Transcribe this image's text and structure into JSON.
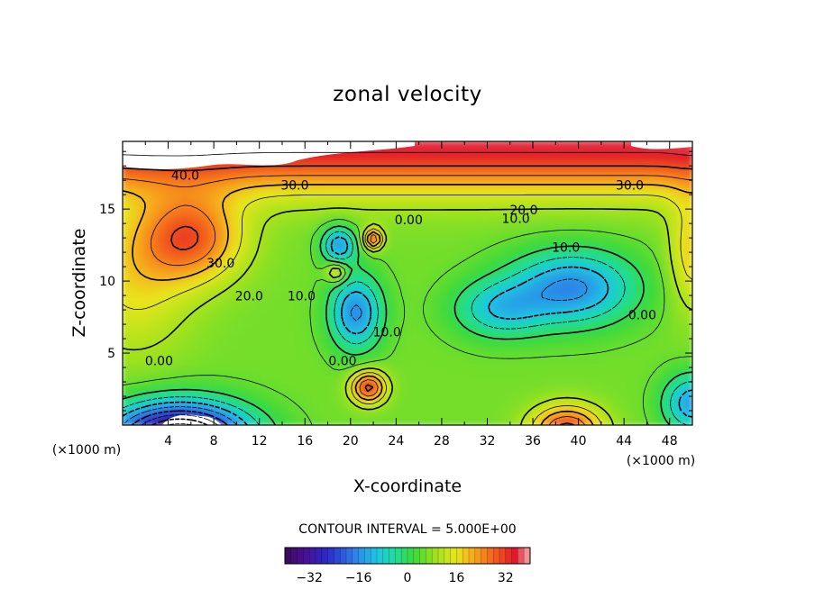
{
  "chart_data": {
    "type": "contour",
    "title": "zonal velocity",
    "xlabel": "X-coordinate",
    "ylabel": "Z-coordinate",
    "x_units": "(×1000 m)",
    "y_units": "(×1000 m)",
    "xlim": [
      0,
      50
    ],
    "ylim": [
      0,
      19.7
    ],
    "x_ticks": [
      4,
      8,
      12,
      16,
      20,
      24,
      28,
      32,
      36,
      40,
      44,
      48
    ],
    "x_tick_labels": [
      "4",
      "8",
      "12",
      "16",
      "20",
      "24",
      "28",
      "32",
      "36",
      "40",
      "44",
      "48"
    ],
    "y_ticks": [
      5,
      10,
      15
    ],
    "y_tick_labels": [
      "5",
      "10",
      "15"
    ],
    "contour_interval_text": "CONTOUR INTERVAL = 5.000E+00",
    "contour_interval": 5.0,
    "contour_labels": [
      {
        "text": "40.0",
        "x": 5.5,
        "z": 17.3
      },
      {
        "text": "30.0",
        "x": 15.1,
        "z": 16.6
      },
      {
        "text": "30.0",
        "x": 44.5,
        "z": 16.6
      },
      {
        "text": "20.0",
        "x": 35.2,
        "z": 14.9
      },
      {
        "text": "10.0",
        "x": 34.5,
        "z": 14.3
      },
      {
        "text": "0.00",
        "x": 25.1,
        "z": 14.2
      },
      {
        "text": "30.0",
        "x": 8.6,
        "z": 11.2
      },
      {
        "text": "10.0",
        "x": 38.9,
        "z": 12.3
      },
      {
        "text": "20.0",
        "x": 11.1,
        "z": 8.9
      },
      {
        "text": "10.0",
        "x": 15.7,
        "z": 8.9
      },
      {
        "text": "0.00",
        "x": 45.6,
        "z": 7.6
      },
      {
        "text": "10.0",
        "x": 23.2,
        "z": 6.4
      },
      {
        "text": "0.00",
        "x": 3.2,
        "z": 4.4
      },
      {
        "text": "0.00",
        "x": 19.3,
        "z": 4.4
      }
    ],
    "colorbar": {
      "range": [
        -40,
        40
      ],
      "ticks": [
        -32,
        -16,
        0,
        16,
        32
      ],
      "tick_labels": [
        "−32",
        "−16",
        "0",
        "16",
        "32"
      ]
    },
    "features": [
      {
        "kind": "max",
        "x": 6.0,
        "z": 13.5,
        "value": 34
      },
      {
        "kind": "max",
        "x": 3.0,
        "z": 18.5,
        "value": 45
      },
      {
        "kind": "max",
        "x": 30.0,
        "z": 19.0,
        "value": 40
      },
      {
        "kind": "max",
        "x": 48.0,
        "z": 18.5,
        "value": 42
      },
      {
        "kind": "min",
        "x": 5.0,
        "z": 0.0,
        "value": -38
      },
      {
        "kind": "min",
        "x": 40.0,
        "z": 9.5,
        "value": -14
      },
      {
        "kind": "min",
        "x": 20.5,
        "z": 7.5,
        "value": -12
      },
      {
        "kind": "min",
        "x": 19.0,
        "z": 12.5,
        "value": -13
      },
      {
        "kind": "max",
        "x": 21.5,
        "z": 2.5,
        "value": 30
      },
      {
        "kind": "max",
        "x": 22.0,
        "z": 12.9,
        "value": 33
      },
      {
        "kind": "max",
        "x": 39.0,
        "z": 0.5,
        "value": 32
      }
    ]
  }
}
